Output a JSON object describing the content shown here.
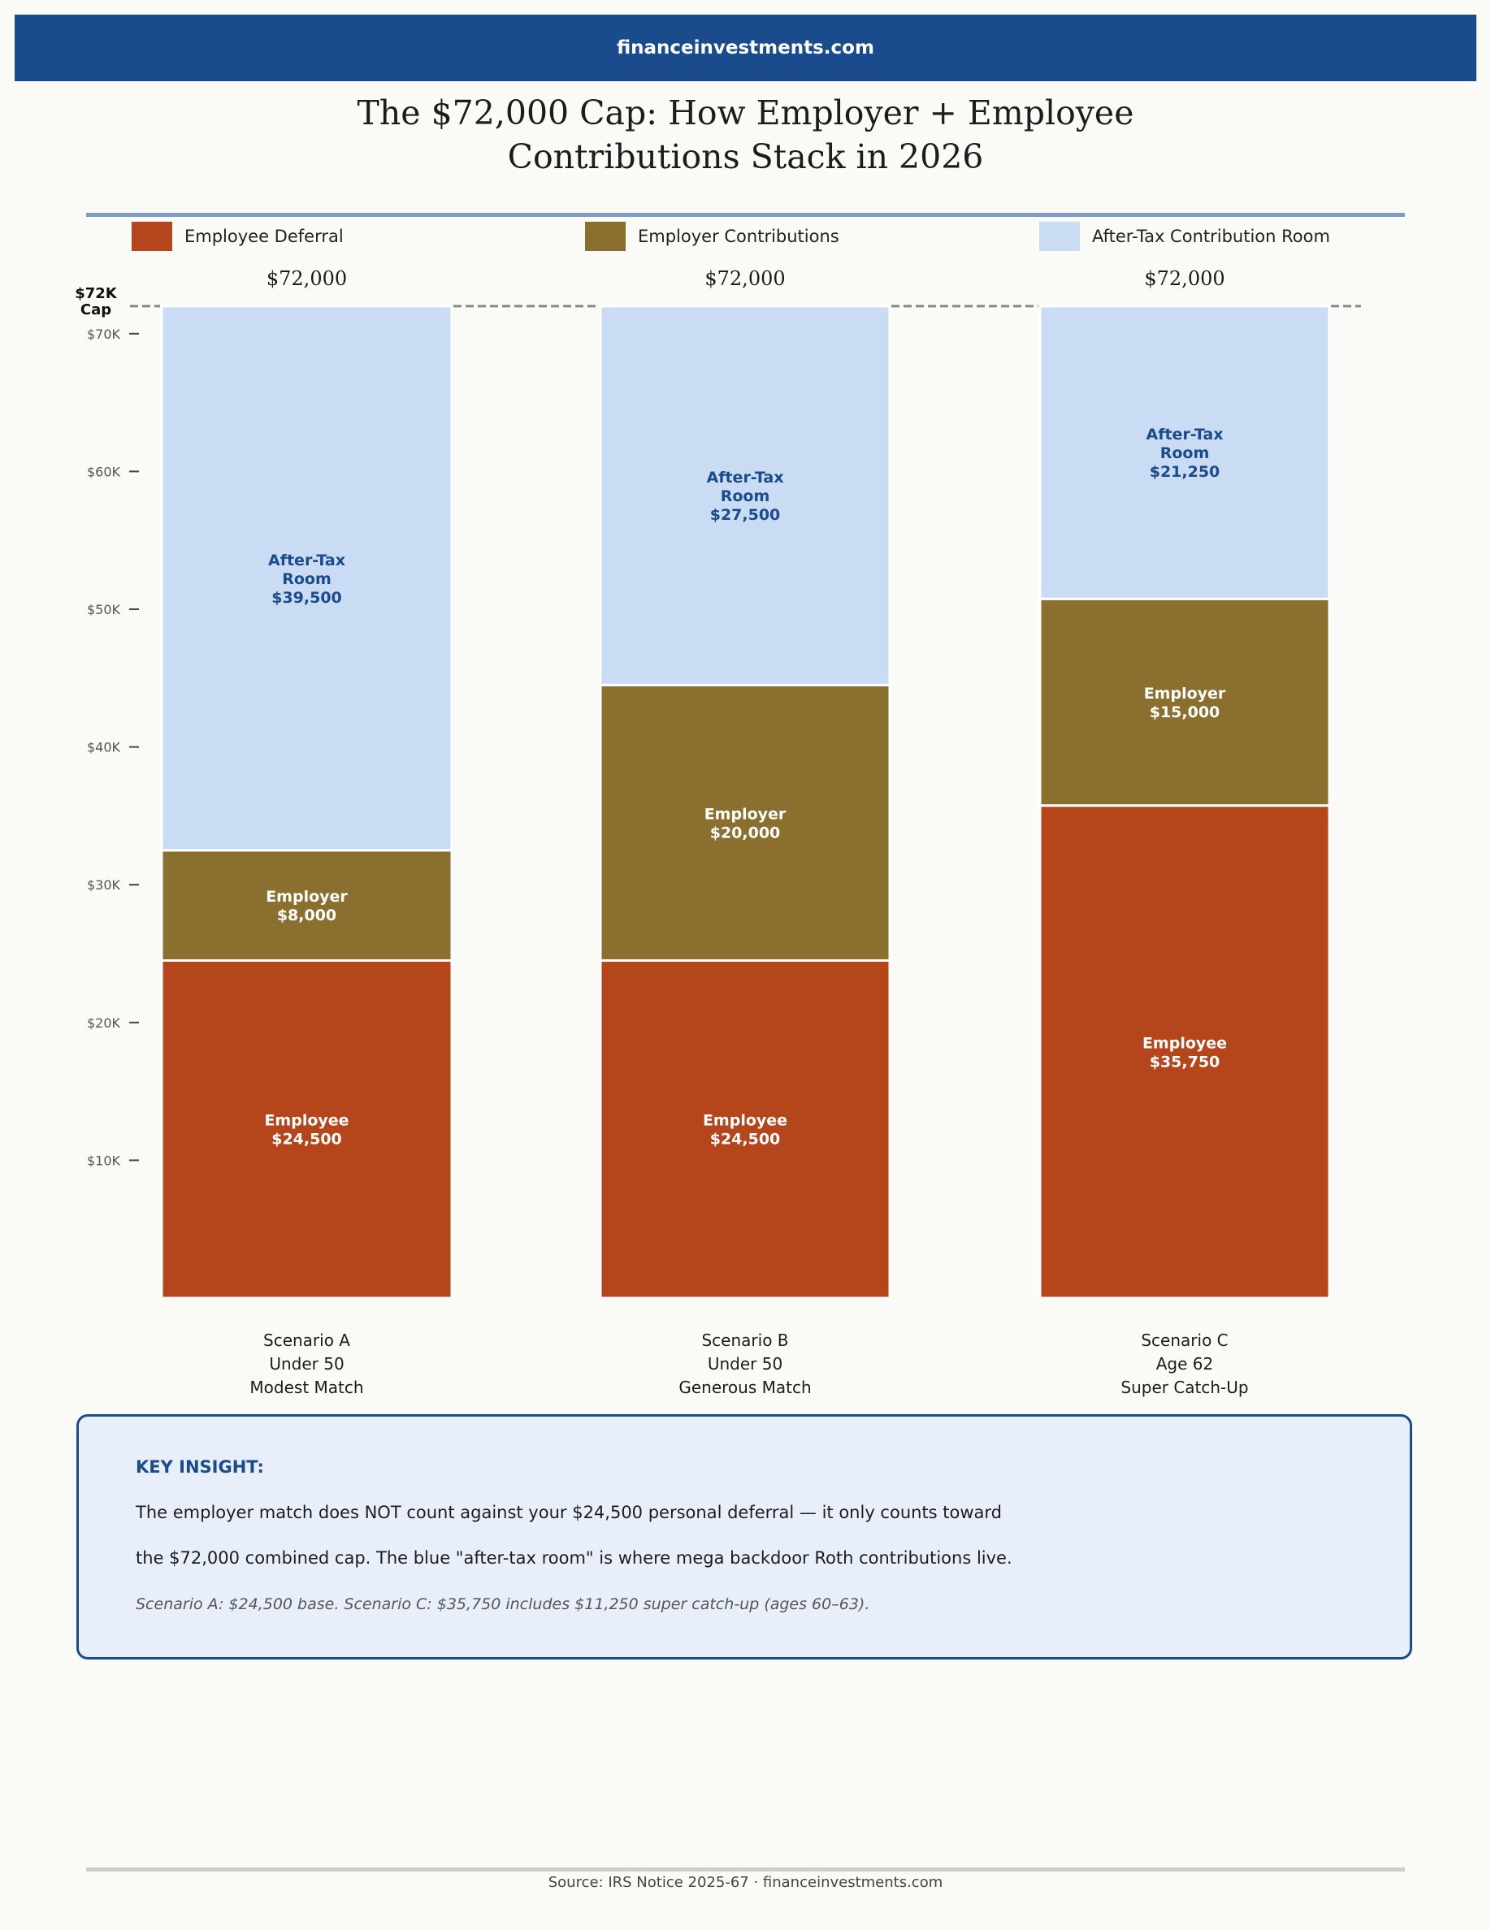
{
  "header": {
    "site": "financeinvestments.com"
  },
  "colors": {
    "employee": "#b5451b",
    "employer": "#8b6f2f",
    "after_tax": "#c9dcf4",
    "brand": "#1a4b8c",
    "after_tax_text": "#1a4b8c"
  },
  "chart_data": {
    "type": "bar",
    "stacked": true,
    "title_lines": [
      "The $72,000 Cap: How Employer + Employee",
      "Contributions Stack in 2026"
    ],
    "legend": [
      "Employee Deferral",
      "Employer Contributions",
      "After-Tax Contribution Room"
    ],
    "legend_placement": "top",
    "categories": [
      [
        "Scenario A",
        "Under 50",
        "Modest Match"
      ],
      [
        "Scenario B",
        "Under 50",
        "Generous Match"
      ],
      [
        "Scenario C",
        "Age 62",
        "Super Catch-Up"
      ]
    ],
    "totals": [
      "$72,000",
      "$72,000",
      "$72,000"
    ],
    "series": [
      {
        "name": "Employee Deferral",
        "values": [
          24500,
          24500,
          35750
        ],
        "label_lines": [
          "Employee"
        ],
        "value_labels": [
          "$24,500",
          "$24,500",
          "$35,750"
        ]
      },
      {
        "name": "Employer Contributions",
        "values": [
          8000,
          20000,
          15000
        ],
        "label_lines": [
          "Employer"
        ],
        "value_labels": [
          "$8,000",
          "$20,000",
          "$15,000"
        ]
      },
      {
        "name": "After-Tax Contribution Room",
        "values": [
          39500,
          27500,
          21250
        ],
        "label_lines": [
          "After-Tax",
          "Room"
        ],
        "value_labels": [
          "$39,500",
          "$27,500",
          "$21,250"
        ]
      }
    ],
    "ylim": [
      0,
      72000
    ],
    "yticks": [
      10000,
      20000,
      30000,
      40000,
      50000,
      60000,
      70000
    ],
    "ytick_labels": [
      "$10K",
      "$20K",
      "$30K",
      "$40K",
      "$50K",
      "$60K",
      "$70K"
    ],
    "cap": {
      "value": 72000,
      "label_lines": [
        "$72K",
        "Cap"
      ]
    },
    "grid": false
  },
  "insight": {
    "heading": "KEY INSIGHT:",
    "line1": "The employer match does NOT count against your $24,500 personal deferral — it only counts toward",
    "line2": "the $72,000 combined cap. The blue \"after-tax room\" is where mega backdoor Roth contributions live.",
    "note": "Scenario A: $24,500 base. Scenario C: $35,750 includes $11,250 super catch-up (ages 60–63)."
  },
  "footer": {
    "source": "Source: IRS Notice 2025-67  ·  financeinvestments.com"
  }
}
